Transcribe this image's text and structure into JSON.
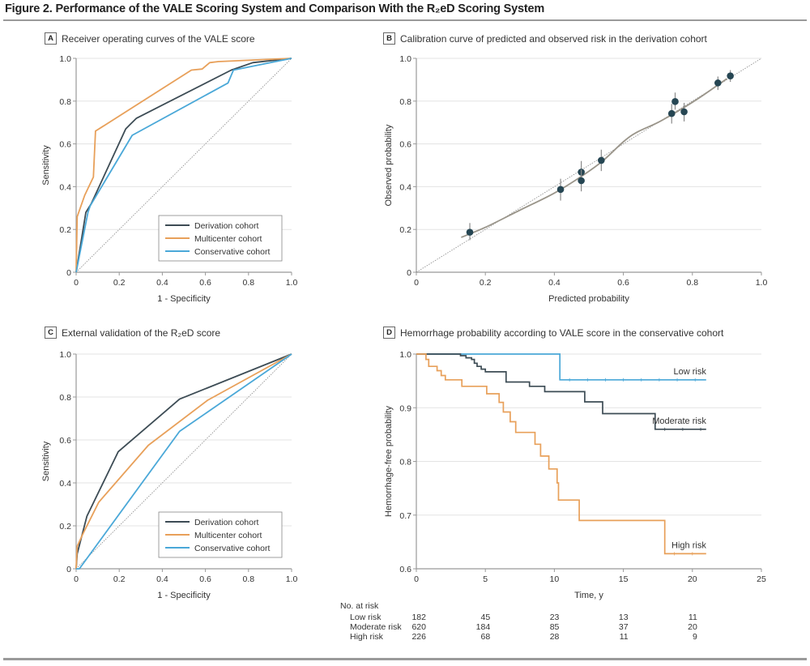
{
  "figure_title": "Figure 2. Performance of the VALE Scoring System and Comparison With the R₂eD Scoring System",
  "panels": {
    "A": {
      "letter": "A",
      "title": "Receiver operating curves of the VALE score"
    },
    "B": {
      "letter": "B",
      "title": "Calibration curve of predicted and observed risk in the derivation cohort"
    },
    "C": {
      "letter": "C",
      "title": "External validation of the R₂eD score"
    },
    "D": {
      "letter": "D",
      "title": "Hemorrhage probability according to VALE score in the conservative cohort"
    }
  },
  "colors": {
    "derivation": "#3d4c55",
    "multicenter": "#e8a05a",
    "conservative": "#4aa8d8",
    "calibration_curve": "#9a958a",
    "calibration_points": "#264653",
    "grid": "#e3e3e3",
    "axis": "#999999",
    "diagonal": "#888888"
  },
  "chart_data": [
    {
      "id": "A",
      "type": "line",
      "title": "Receiver operating curves of the VALE score",
      "xlabel": "1 - Specificity",
      "ylabel": "Sensitivity",
      "xlim": [
        0,
        1
      ],
      "ylim": [
        0,
        1
      ],
      "xticks": [
        "0",
        "0.2",
        "0.4",
        "0.6",
        "0.8",
        "1.0"
      ],
      "yticks": [
        "0",
        "0.2",
        "0.4",
        "0.6",
        "0.8",
        "1.0"
      ],
      "grid": true,
      "reference_line": "diagonal",
      "legend": {
        "placement": "bottom-right",
        "entries": [
          "Derivation cohort",
          "Multicenter cohort",
          "Conservative cohort"
        ]
      },
      "series": [
        {
          "name": "Derivation cohort",
          "color_key": "derivation",
          "points": [
            [
              0,
              0
            ],
            [
              0.045,
              0.28
            ],
            [
              0.07,
              0.32
            ],
            [
              0.23,
              0.67
            ],
            [
              0.25,
              0.69
            ],
            [
              0.28,
              0.72
            ],
            [
              0.72,
              0.945
            ],
            [
              0.82,
              0.98
            ],
            [
              1,
              1
            ]
          ]
        },
        {
          "name": "Multicenter cohort",
          "color_key": "multicenter",
          "points": [
            [
              0,
              0
            ],
            [
              0.005,
              0.26
            ],
            [
              0.04,
              0.36
            ],
            [
              0.08,
              0.445
            ],
            [
              0.09,
              0.66
            ],
            [
              0.535,
              0.945
            ],
            [
              0.585,
              0.95
            ],
            [
              0.62,
              0.98
            ],
            [
              0.66,
              0.985
            ],
            [
              1,
              1
            ]
          ]
        },
        {
          "name": "Conservative cohort",
          "color_key": "conservative",
          "points": [
            [
              0,
              0
            ],
            [
              0.055,
              0.28
            ],
            [
              0.065,
              0.31
            ],
            [
              0.26,
              0.64
            ],
            [
              0.705,
              0.885
            ],
            [
              0.73,
              0.945
            ],
            [
              1,
              1
            ]
          ]
        }
      ]
    },
    {
      "id": "B",
      "type": "scatter",
      "title": "Calibration curve of predicted and observed risk in the derivation cohort",
      "xlabel": "Predicted probability",
      "ylabel": "Observed probability",
      "xlim": [
        0,
        1
      ],
      "ylim": [
        0,
        1
      ],
      "xticks": [
        "0",
        "0.2",
        "0.4",
        "0.6",
        "0.8",
        "1.0"
      ],
      "yticks": [
        "0",
        "0.2",
        "0.4",
        "0.6",
        "0.8",
        "1.0"
      ],
      "grid": true,
      "reference_line": "diagonal",
      "points": [
        {
          "x": 0.155,
          "y": 0.187,
          "lo": 0.15,
          "hi": 0.23
        },
        {
          "x": 0.418,
          "y": 0.387,
          "lo": 0.335,
          "hi": 0.437
        },
        {
          "x": 0.478,
          "y": 0.468,
          "lo": 0.42,
          "hi": 0.52
        },
        {
          "x": 0.478,
          "y": 0.428,
          "lo": 0.378,
          "hi": 0.48
        },
        {
          "x": 0.536,
          "y": 0.523,
          "lo": 0.473,
          "hi": 0.573
        },
        {
          "x": 0.74,
          "y": 0.742,
          "lo": 0.695,
          "hi": 0.787
        },
        {
          "x": 0.75,
          "y": 0.798,
          "lo": 0.76,
          "hi": 0.84
        },
        {
          "x": 0.776,
          "y": 0.75,
          "lo": 0.705,
          "hi": 0.792
        },
        {
          "x": 0.874,
          "y": 0.885,
          "lo": 0.852,
          "hi": 0.915
        },
        {
          "x": 0.91,
          "y": 0.918,
          "lo": 0.89,
          "hi": 0.945
        }
      ],
      "smooth_curve": [
        [
          0.13,
          0.163
        ],
        [
          0.2,
          0.21
        ],
        [
          0.3,
          0.29
        ],
        [
          0.4,
          0.37
        ],
        [
          0.48,
          0.45
        ],
        [
          0.54,
          0.52
        ],
        [
          0.6,
          0.61
        ],
        [
          0.64,
          0.655
        ],
        [
          0.7,
          0.7
        ],
        [
          0.76,
          0.755
        ],
        [
          0.82,
          0.815
        ],
        [
          0.9,
          0.905
        ]
      ]
    },
    {
      "id": "C",
      "type": "line",
      "title": "External validation of the R₂eD score",
      "xlabel": "1 - Specificity",
      "ylabel": "Sensitivity",
      "xlim": [
        0,
        1
      ],
      "ylim": [
        0,
        1
      ],
      "xticks": [
        "0",
        "0.2",
        "0.4",
        "0.6",
        "0.8",
        "1.0"
      ],
      "yticks": [
        "0",
        "0.2",
        "0.4",
        "0.6",
        "0.8",
        "1.0"
      ],
      "grid": true,
      "reference_line": "diagonal",
      "legend": {
        "placement": "bottom-right",
        "entries": [
          "Derivation cohort",
          "Multicenter cohort",
          "Conservative cohort"
        ]
      },
      "series": [
        {
          "name": "Derivation cohort",
          "color_key": "derivation",
          "points": [
            [
              0,
              0
            ],
            [
              0.005,
              0.07
            ],
            [
              0.05,
              0.245
            ],
            [
              0.195,
              0.545
            ],
            [
              0.48,
              0.79
            ],
            [
              1,
              1
            ]
          ]
        },
        {
          "name": "Multicenter cohort",
          "color_key": "multicenter",
          "points": [
            [
              0,
              0
            ],
            [
              0.005,
              0.105
            ],
            [
              0.03,
              0.16
            ],
            [
              0.105,
              0.31
            ],
            [
              0.335,
              0.575
            ],
            [
              0.61,
              0.785
            ],
            [
              1,
              1
            ]
          ]
        },
        {
          "name": "Conservative cohort",
          "color_key": "conservative",
          "points": [
            [
              0,
              0
            ],
            [
              0.015,
              0
            ],
            [
              0.48,
              0.64
            ],
            [
              1,
              1
            ]
          ]
        }
      ]
    },
    {
      "id": "D",
      "type": "line",
      "subtype": "kaplan-meier",
      "title": "Hemorrhage probability according to VALE score in the conservative cohort",
      "xlabel": "Time, y",
      "ylabel": "Hemorrhage-free probability",
      "xlim": [
        0,
        25
      ],
      "ylim": [
        0.6,
        1.0
      ],
      "xticks": [
        "0",
        "5",
        "10",
        "15",
        "20",
        "25"
      ],
      "yticks": [
        "0.6",
        "0.7",
        "0.8",
        "0.9",
        "1.0"
      ],
      "grid": true,
      "series": [
        {
          "name": "Low risk",
          "label": "Low risk",
          "color_key": "conservative",
          "steps": [
            [
              0,
              1.0
            ],
            [
              10.4,
              0.952
            ]
          ],
          "end": 21
        },
        {
          "name": "Moderate risk",
          "label": "Moderate risk",
          "color_key": "derivation",
          "steps": [
            [
              0,
              1.0
            ],
            [
              3.2,
              0.997
            ],
            [
              3.6,
              0.993
            ],
            [
              4.0,
              0.99
            ],
            [
              4.2,
              0.983
            ],
            [
              4.4,
              0.977
            ],
            [
              4.7,
              0.972
            ],
            [
              5.0,
              0.967
            ],
            [
              6.5,
              0.948
            ],
            [
              8.2,
              0.94
            ],
            [
              9.3,
              0.93
            ],
            [
              12.2,
              0.911
            ],
            [
              13.5,
              0.889
            ],
            [
              17.3,
              0.86
            ]
          ],
          "end": 21
        },
        {
          "name": "High risk",
          "label": "High risk",
          "color_key": "multicenter",
          "steps": [
            [
              0,
              1.0
            ],
            [
              0.7,
              0.99
            ],
            [
              0.9,
              0.977
            ],
            [
              1.5,
              0.969
            ],
            [
              1.8,
              0.96
            ],
            [
              2.1,
              0.952
            ],
            [
              3.3,
              0.94
            ],
            [
              5.1,
              0.926
            ],
            [
              6.0,
              0.91
            ],
            [
              6.3,
              0.892
            ],
            [
              6.8,
              0.874
            ],
            [
              7.2,
              0.854
            ],
            [
              8.6,
              0.832
            ],
            [
              9.0,
              0.81
            ],
            [
              9.6,
              0.786
            ],
            [
              10.2,
              0.76
            ],
            [
              10.3,
              0.728
            ],
            [
              11.8,
              0.69
            ],
            [
              18.0,
              0.628
            ]
          ],
          "end": 21
        }
      ],
      "number_at_risk": {
        "title": "No. at risk",
        "rows": [
          {
            "label": "Low risk",
            "values": [
              "182",
              "45",
              "23",
              "13",
              "11"
            ]
          },
          {
            "label": "Moderate risk",
            "values": [
              "620",
              "184",
              "85",
              "37",
              "20"
            ]
          },
          {
            "label": "High risk",
            "values": [
              "226",
              "68",
              "28",
              "11",
              "9"
            ]
          }
        ]
      }
    }
  ]
}
